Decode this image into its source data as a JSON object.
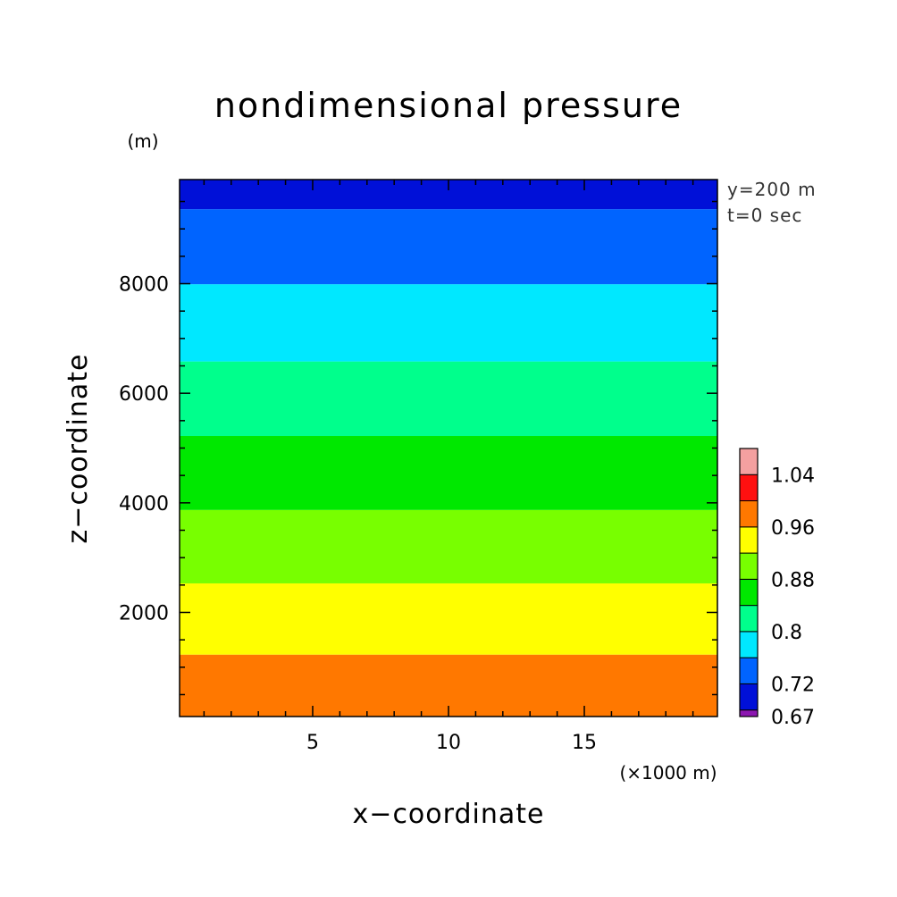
{
  "chart_data": {
    "type": "heatmap",
    "title": "nondimensional pressure",
    "xlabel": "x−coordinate",
    "ylabel": "z−coordinate",
    "x_unit": "(×1000 m)",
    "y_unit": "(m)",
    "info": [
      "y=200 m",
      "t=0 sec"
    ],
    "xlim": [
      0.1,
      19.9
    ],
    "ylim": [
      100,
      9900
    ],
    "x_ticks": [
      5,
      10,
      15
    ],
    "y_ticks": [
      2000,
      4000,
      6000,
      8000
    ],
    "x_tick_labels": [
      "5",
      "10",
      "15"
    ],
    "y_tick_labels": [
      "2000",
      "4000",
      "6000",
      "8000"
    ],
    "x_minor_step": 1,
    "y_minor_step": 500,
    "grid": false,
    "legend_position": "right",
    "contour_levels": [
      0.67,
      0.68,
      0.72,
      0.76,
      0.8,
      0.84,
      0.88,
      0.92,
      0.96,
      1.0,
      1.04,
      1.08
    ],
    "colors": [
      "#8c16b0",
      "#0010d8",
      "#0064ff",
      "#00e8ff",
      "#00ff8c",
      "#00e800",
      "#78ff00",
      "#ffff00",
      "#ff7800",
      "#ff1010",
      "#f4a0a0"
    ],
    "colorbar_labels": [
      {
        "value": 0.67,
        "text": "0.67"
      },
      {
        "value": 0.72,
        "text": "0.72"
      },
      {
        "value": 0.8,
        "text": "0.8"
      },
      {
        "value": 0.88,
        "text": "0.88"
      },
      {
        "value": 0.96,
        "text": "0.96"
      },
      {
        "value": 1.04,
        "text": "1.04"
      }
    ],
    "bands": [
      {
        "z_min": 100,
        "z_max": 1230,
        "level_index": 8,
        "value_range": [
          0.96,
          1.0
        ]
      },
      {
        "z_min": 1230,
        "z_max": 2530,
        "level_index": 7,
        "value_range": [
          0.92,
          0.96
        ]
      },
      {
        "z_min": 2530,
        "z_max": 3870,
        "level_index": 6,
        "value_range": [
          0.88,
          0.92
        ]
      },
      {
        "z_min": 3870,
        "z_max": 5220,
        "level_index": 5,
        "value_range": [
          0.84,
          0.88
        ]
      },
      {
        "z_min": 5220,
        "z_max": 6580,
        "level_index": 4,
        "value_range": [
          0.8,
          0.84
        ]
      },
      {
        "z_min": 6580,
        "z_max": 7990,
        "level_index": 3,
        "value_range": [
          0.76,
          0.8
        ]
      },
      {
        "z_min": 7990,
        "z_max": 9360,
        "level_index": 2,
        "value_range": [
          0.72,
          0.76
        ]
      },
      {
        "z_min": 9360,
        "z_max": 9900,
        "level_index": 1,
        "value_range": [
          0.68,
          0.72
        ]
      }
    ]
  }
}
